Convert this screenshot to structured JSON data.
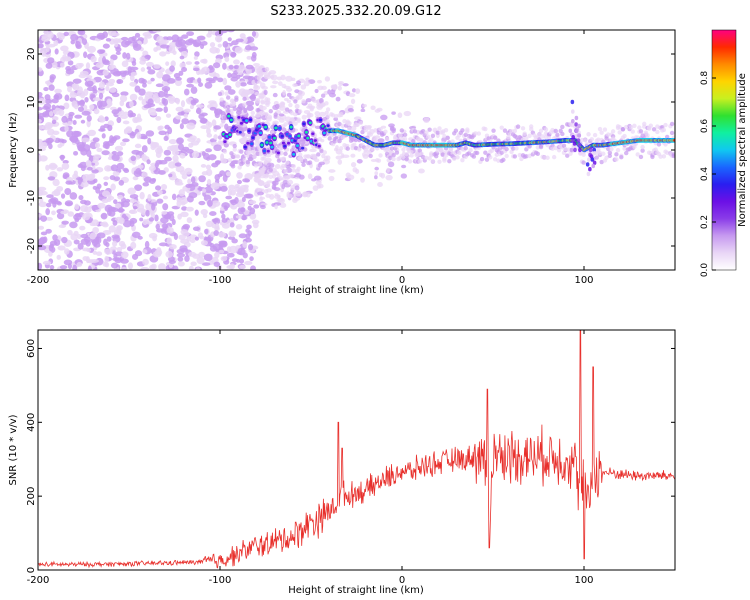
{
  "figure": {
    "title": "S233.2025.332.20.09.G12"
  },
  "colors": {
    "snr_line": "#e8302c",
    "colormap": [
      "#ffffff",
      "#e9d6f6",
      "#c79af0",
      "#8a3ce8",
      "#6b10e6",
      "#2a1ef0",
      "#1a66ff",
      "#10c8f0",
      "#10f0a0",
      "#30e030",
      "#c8f020",
      "#ffd400",
      "#ff8a00",
      "#ff2a00",
      "#ff0080"
    ]
  },
  "chart_data": [
    {
      "type": "heatmap",
      "name": "spectrogram",
      "title": "S233.2025.332.20.09.G12",
      "xlabel": "Height of straight line (km)",
      "ylabel": "Frequency (Hz)",
      "xlim": [
        -200,
        150
      ],
      "ylim": [
        -25,
        25
      ],
      "xticks": [
        -200,
        -100,
        0,
        100
      ],
      "yticks": [
        -20,
        -10,
        0,
        10,
        20
      ],
      "colorbar": {
        "label": "Normalized spectral amplitude",
        "range": [
          0,
          1
        ],
        "ticks": [
          0.0,
          0.2,
          0.4,
          0.6,
          0.8
        ]
      },
      "ridge": {
        "x": [
          -100,
          -90,
          -80,
          -70,
          -60,
          -50,
          -40,
          -35,
          -30,
          -25,
          -20,
          -15,
          -10,
          -5,
          0,
          5,
          10,
          20,
          30,
          35,
          40,
          50,
          60,
          70,
          80,
          90,
          95,
          100,
          105,
          110,
          120,
          130,
          140,
          150
        ],
        "y": [
          5,
          4,
          3,
          2,
          2,
          3,
          4,
          4,
          3.5,
          3,
          2,
          1,
          1,
          1.5,
          1.5,
          1,
          1,
          1,
          1,
          1.5,
          1,
          1.2,
          1.3,
          1.5,
          1.7,
          2,
          2,
          0,
          1,
          1,
          1.5,
          2,
          2,
          2
        ]
      },
      "annotations": []
    },
    {
      "type": "line",
      "name": "snr",
      "xlabel": "Height of straight line (km)",
      "ylabel": "SNR (10 * v/v)",
      "xlim": [
        -200,
        150
      ],
      "ylim": [
        0,
        650
      ],
      "xticks": [
        -200,
        -100,
        0,
        100
      ],
      "yticks": [
        0,
        200,
        400,
        600
      ],
      "series": [
        {
          "name": "SNR",
          "x": [
            -200,
            -180,
            -160,
            -140,
            -120,
            -110,
            -100,
            -95,
            -90,
            -85,
            -80,
            -75,
            -70,
            -65,
            -60,
            -55,
            -50,
            -45,
            -40,
            -35,
            -33,
            -30,
            -25,
            -20,
            -15,
            -10,
            -5,
            0,
            5,
            10,
            15,
            20,
            25,
            30,
            35,
            40,
            45,
            48,
            50,
            55,
            60,
            65,
            70,
            75,
            80,
            85,
            90,
            95,
            98,
            100,
            102,
            105,
            110,
            120,
            130,
            140,
            150
          ],
          "values": [
            15,
            15,
            16,
            18,
            20,
            22,
            26,
            35,
            45,
            55,
            65,
            70,
            75,
            85,
            90,
            110,
            130,
            140,
            160,
            180,
            210,
            200,
            210,
            215,
            230,
            245,
            255,
            270,
            265,
            280,
            285,
            290,
            295,
            300,
            300,
            310,
            305,
            150,
            320,
            305,
            310,
            312,
            305,
            308,
            310,
            305,
            300,
            290,
            200,
            250,
            170,
            260,
            265,
            260,
            255,
            255,
            255
          ]
        }
      ],
      "peaks": [
        {
          "x": -35,
          "y": 400
        },
        {
          "x": -33,
          "y": 330
        },
        {
          "x": 47,
          "y": 490
        },
        {
          "x": 48,
          "y": 60
        },
        {
          "x": 98,
          "y": 650
        },
        {
          "x": 100,
          "y": 30
        },
        {
          "x": 105,
          "y": 550
        }
      ]
    }
  ]
}
